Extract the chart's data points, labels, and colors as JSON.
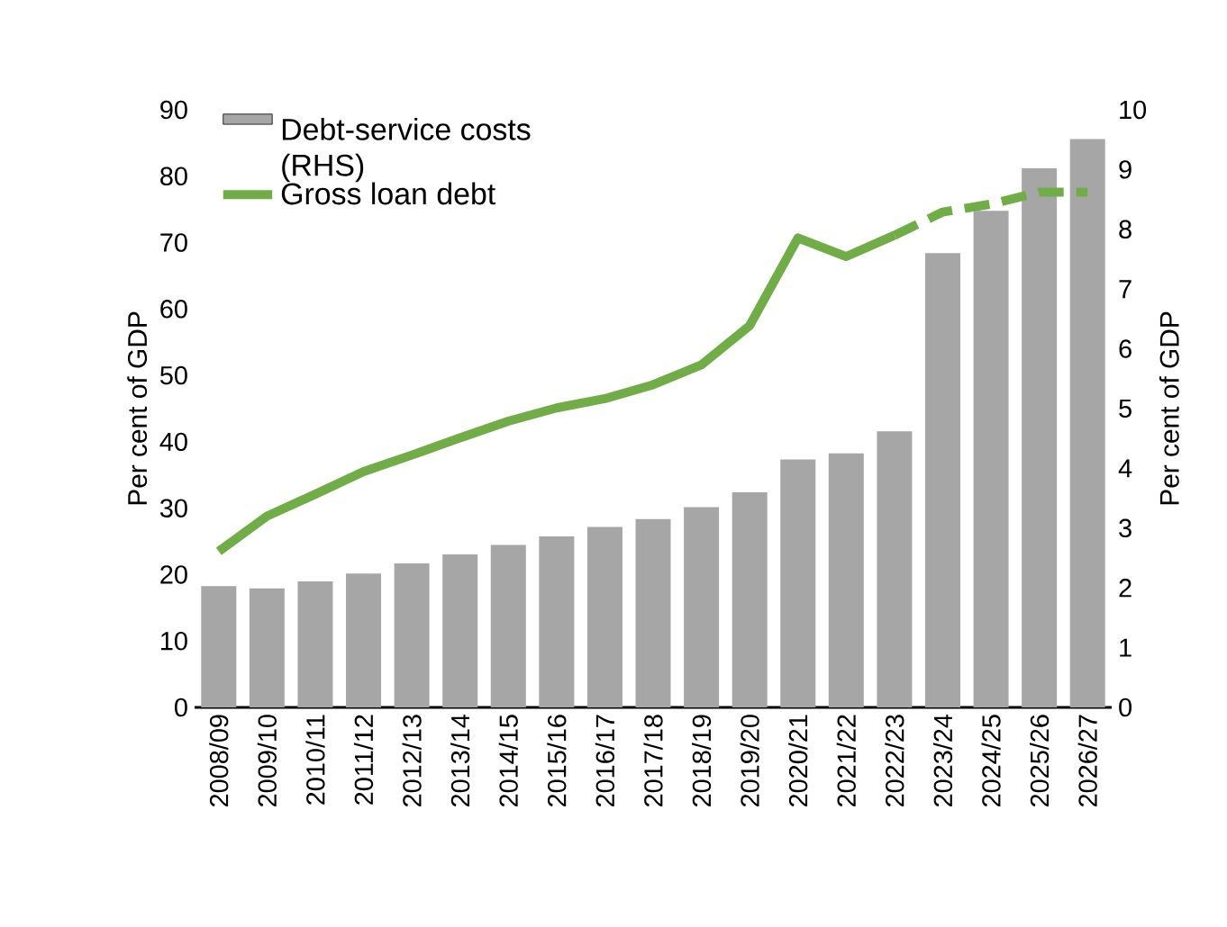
{
  "chart_data": {
    "type": "bar",
    "ylabel": "Per cent of GDP",
    "y2label": "Per cent of GDP",
    "categories": [
      "2008/09",
      "2009/10",
      "2010/11",
      "2011/12",
      "2012/13",
      "2013/14",
      "2014/15",
      "2015/16",
      "2016/17",
      "2017/18",
      "2018/19",
      "2019/20",
      "2020/21",
      "2021/22",
      "2022/23",
      "2023/24",
      "2024/25",
      "2025/26",
      "2026/27"
    ],
    "series": [
      {
        "name": "Debt-service costs (RHS)",
        "axis": "y2",
        "color": "#a6a6a6",
        "values": [
          2.03,
          1.99,
          2.11,
          2.24,
          2.41,
          2.56,
          2.72,
          2.86,
          3.02,
          3.15,
          3.35,
          3.6,
          4.15,
          4.25,
          4.62,
          7.6,
          8.31,
          9.02,
          9.51
        ]
      },
      {
        "name": "Gross loan debt",
        "type": "line",
        "color": "#70ad47",
        "line_style": "solid",
        "values": [
          23.5,
          28.8,
          32.1,
          35.5,
          38.0,
          40.6,
          43.1,
          45.1,
          46.5,
          48.6,
          51.6,
          57.5,
          70.7,
          67.9,
          71.1,
          null,
          null,
          null,
          null
        ]
      },
      {
        "type": "line",
        "color": "#70ad47",
        "line_style": "dashed",
        "values": [
          null,
          null,
          null,
          null,
          null,
          null,
          null,
          null,
          null,
          null,
          null,
          null,
          null,
          null,
          71.1,
          74.6,
          75.8,
          77.6,
          77.6
        ]
      }
    ],
    "ylim": [
      0,
      90
    ],
    "yticks": [
      0,
      10,
      20,
      30,
      40,
      50,
      60,
      70,
      80,
      90
    ],
    "y2lim": [
      0,
      10
    ],
    "y2ticks": [
      0,
      1,
      2,
      3,
      4,
      5,
      6,
      7,
      8,
      9,
      10
    ],
    "legend": "top left",
    "grid": false
  }
}
